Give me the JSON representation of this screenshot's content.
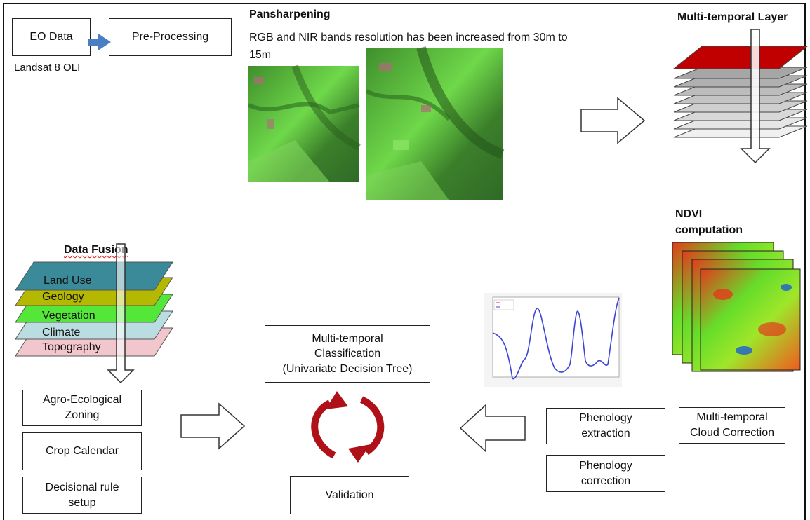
{
  "top_left": {
    "eo_data": "EO Data",
    "pre_processing": "Pre-Processing",
    "sensor": "Landsat 8 OLI"
  },
  "pansharpening": {
    "title": "Pansharpening",
    "description": "RGB  and NIR bands resolution has been increased from 30m to\n15m"
  },
  "multi_temporal_layer": {
    "title": "Multi-temporal Layer"
  },
  "ndvi": {
    "title": "NDVI\ncomputation"
  },
  "data_fusion": {
    "title": "Data Fusion",
    "layers": [
      "Land Use",
      "Geology",
      "Vegetation",
      "Climate",
      "Topography"
    ]
  },
  "left_boxes": {
    "agro": "Agro-Ecological\nZoning",
    "crop_calendar": "Crop Calendar",
    "decisional": "Decisional rule\nsetup"
  },
  "center": {
    "classification": "Multi-temporal\nClassification\n(Univariate Decision Tree)",
    "validation": "Validation"
  },
  "right_boxes": {
    "phenology_extraction": "Phenology\nextraction",
    "phenology_correction": "Phenology\ncorrection",
    "cloud_correction": "Multi-temporal\nCloud Correction"
  },
  "colors": {
    "land_use": "#3b8a99",
    "geology": "#b5b800",
    "vegetation": "#55e63a",
    "climate": "#b9dde1",
    "topography": "#f1c6cc",
    "cycle_red": "#b01018",
    "arrow_blue": "#4a7ec4",
    "top_layer_red": "#c00000"
  }
}
